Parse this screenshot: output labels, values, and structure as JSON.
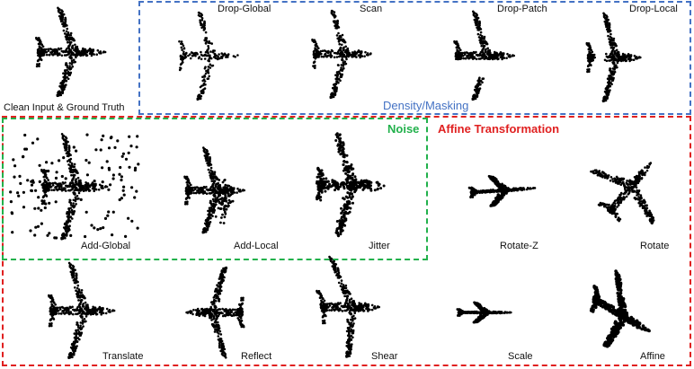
{
  "colors": {
    "density": "#4472c4",
    "noise": "#22b14c",
    "affine": "#e02020",
    "points": "#000000"
  },
  "groups": {
    "density": "Density/Masking",
    "noise": "Noise",
    "affine": "Affine Transformation"
  },
  "labels": {
    "clean": "Clean Input & Ground Truth",
    "drop_global": "Drop-Global",
    "scan": "Scan",
    "drop_patch": "Drop-Patch",
    "drop_local": "Drop-Local",
    "add_global": "Add-Global",
    "add_local": "Add-Local",
    "jitter": "Jitter",
    "rotate_z": "Rotate-Z",
    "rotate": "Rotate",
    "translate": "Translate",
    "reflect": "Reflect",
    "shear": "Shear",
    "scale": "Scale",
    "affine": "Affine"
  }
}
